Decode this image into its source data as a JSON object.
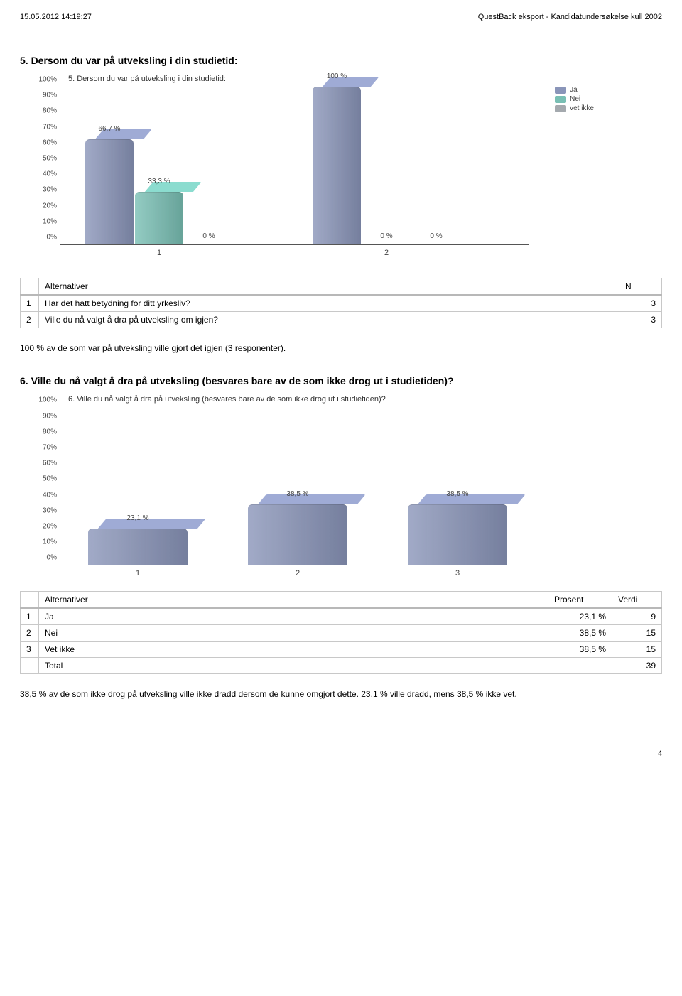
{
  "header": {
    "left": "15.05.2012 14:19:27",
    "right": "QuestBack eksport - Kandidatundersøkelse kull 2002"
  },
  "section5": {
    "heading": "5. Dersom du var på utveksling i din studietid:",
    "chart_title": "5. Dersom du var på utveksling i din studietid:",
    "yticks": [
      "0%",
      "10%",
      "20%",
      "30%",
      "40%",
      "50%",
      "60%",
      "70%",
      "80%",
      "90%",
      "100%"
    ],
    "groups": [
      {
        "x_label": "1",
        "bars": [
          {
            "value": 66.7,
            "label": "66,7 %",
            "color": "#8a95b9"
          },
          {
            "value": 33.3,
            "label": "33,3 %",
            "color": "#79bfb4"
          },
          {
            "value": 0,
            "label": "0 %",
            "color": "#a4a9ae"
          }
        ]
      },
      {
        "x_label": "2",
        "bars": [
          {
            "value": 100,
            "label": "100 %",
            "color": "#8a95b9"
          },
          {
            "value": 0,
            "label": "0 %",
            "color": "#79bfb4"
          },
          {
            "value": 0,
            "label": "0 %",
            "color": "#a4a9ae"
          }
        ]
      }
    ],
    "legend": [
      {
        "label": "Ja",
        "color": "#8a95b9"
      },
      {
        "label": "Nei",
        "color": "#79bfb4"
      },
      {
        "label": "vet ikke",
        "color": "#a4a9ae"
      }
    ]
  },
  "table5": {
    "columns": [
      "Alternativer",
      "N"
    ],
    "rows": [
      {
        "n": "1",
        "label": "Har det hatt betydning for ditt yrkesliv?",
        "v": "3"
      },
      {
        "n": "2",
        "label": "Ville du nå valgt å dra på utveksling om igjen?",
        "v": "3"
      }
    ]
  },
  "caption5": "100 % av de som var på utveksling ville gjort det igjen (3 responenter).",
  "section6": {
    "heading": "6. Ville du nå valgt å dra på utveksling (besvares bare av de som ikke drog ut i studietiden)?",
    "chart_title": "6. Ville du nå valgt å dra på utveksling (besvares bare av de som ikke drog ut i studietiden)?",
    "yticks": [
      "0%",
      "10%",
      "20%",
      "30%",
      "40%",
      "50%",
      "60%",
      "70%",
      "80%",
      "90%",
      "100%"
    ],
    "bars": [
      {
        "x_label": "1",
        "value": 23.1,
        "label": "23,1 %",
        "color": "#8a95b9"
      },
      {
        "x_label": "2",
        "value": 38.5,
        "label": "38,5 %",
        "color": "#8a95b9"
      },
      {
        "x_label": "3",
        "value": 38.5,
        "label": "38,5 %",
        "color": "#8a95b9"
      }
    ]
  },
  "table6": {
    "columns": [
      "Alternativer",
      "Prosent",
      "Verdi"
    ],
    "rows": [
      {
        "n": "1",
        "label": "Ja",
        "p": "23,1 %",
        "v": "9"
      },
      {
        "n": "2",
        "label": "Nei",
        "p": "38,5 %",
        "v": "15"
      },
      {
        "n": "3",
        "label": "Vet ikke",
        "p": "38,5 %",
        "v": "15"
      }
    ],
    "total_label": "Total",
    "total_value": "39"
  },
  "caption6": "38,5 % av de som ikke drog på utveksling ville ikke dradd dersom de kunne omgjort dette. 23,1 % ville dradd, mens 38,5 % ikke vet.",
  "page_number": "4"
}
